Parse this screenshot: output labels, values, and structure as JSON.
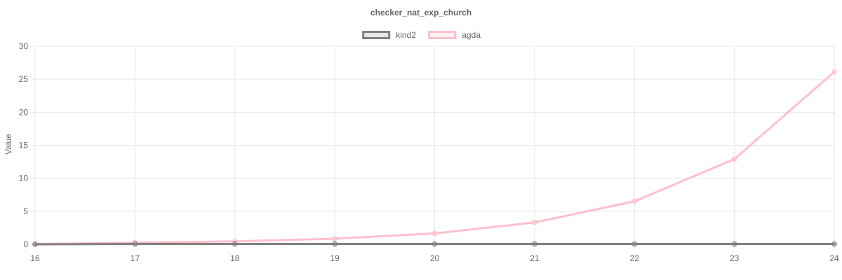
{
  "chart_data": {
    "type": "line",
    "title": "checker_nat_exp_church",
    "xlabel": "",
    "ylabel": "Value",
    "x": [
      16,
      17,
      18,
      19,
      20,
      21,
      22,
      23,
      24
    ],
    "xlim": [
      16,
      24
    ],
    "ylim": [
      0,
      30
    ],
    "yticks": [
      0,
      5,
      10,
      15,
      20,
      25,
      30
    ],
    "grid": true,
    "legend_position": "top-center",
    "series": [
      {
        "name": "kind2",
        "color": "#808080",
        "values": [
          0.0,
          0.05,
          0.05,
          0.05,
          0.05,
          0.05,
          0.05,
          0.05,
          0.05
        ]
      },
      {
        "name": "agda",
        "color": "#ffc0cb",
        "values": [
          0.05,
          0.25,
          0.45,
          0.85,
          1.65,
          3.3,
          6.5,
          12.9,
          26.1
        ]
      }
    ]
  }
}
